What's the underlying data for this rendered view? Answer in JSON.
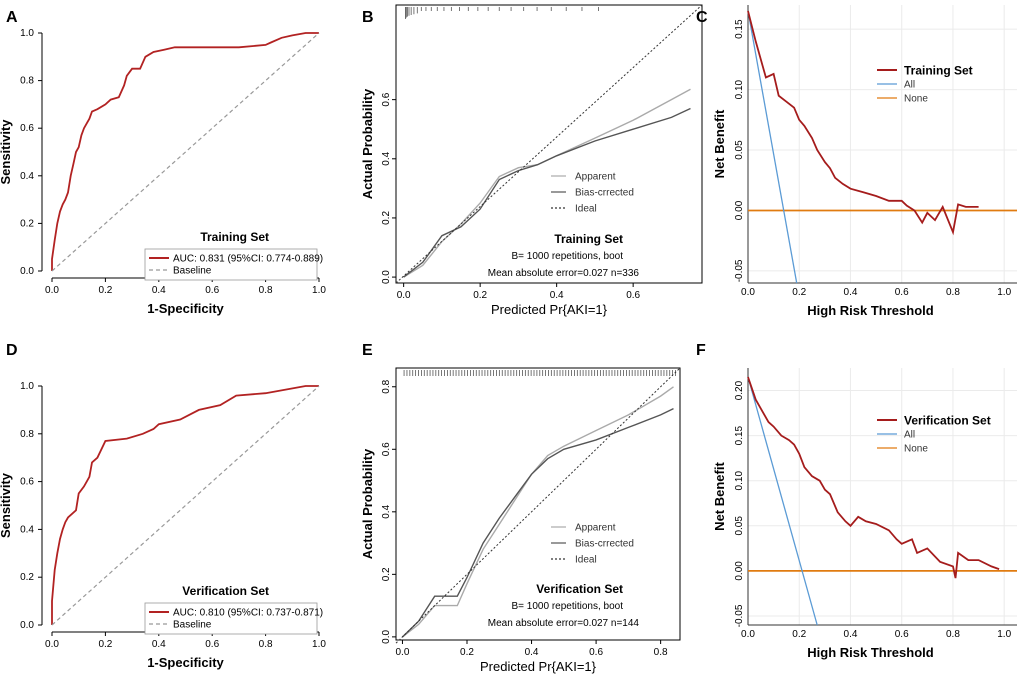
{
  "chart_data": [
    {
      "panel": "A",
      "type": "line",
      "subtype": "roc",
      "set_title": "Training Set",
      "xlabel": "1-Specificity",
      "ylabel": "Sensitivity",
      "xlim": [
        0,
        1
      ],
      "ylim": [
        0,
        1
      ],
      "xticks": [
        "0.0",
        "0.2",
        "0.4",
        "0.6",
        "0.8",
        "1.0"
      ],
      "yticks": [
        "0.0",
        "0.2",
        "0.4",
        "0.6",
        "0.8",
        "1.0"
      ],
      "legend": [
        "AUC: 0.831 (95%CI: 0.774-0.889)",
        "Baseline"
      ],
      "series": [
        {
          "name": "AUC: 0.831 (95%CI: 0.774-0.889)",
          "color": "#b22222",
          "points": [
            [
              0,
              0
            ],
            [
              0,
              0.05
            ],
            [
              0.01,
              0.13
            ],
            [
              0.02,
              0.2
            ],
            [
              0.03,
              0.25
            ],
            [
              0.04,
              0.28
            ],
            [
              0.05,
              0.3
            ],
            [
              0.06,
              0.33
            ],
            [
              0.07,
              0.4
            ],
            [
              0.08,
              0.45
            ],
            [
              0.09,
              0.5
            ],
            [
              0.1,
              0.52
            ],
            [
              0.11,
              0.57
            ],
            [
              0.12,
              0.6
            ],
            [
              0.13,
              0.62
            ],
            [
              0.14,
              0.64
            ],
            [
              0.15,
              0.67
            ],
            [
              0.17,
              0.68
            ],
            [
              0.2,
              0.7
            ],
            [
              0.22,
              0.72
            ],
            [
              0.25,
              0.73
            ],
            [
              0.27,
              0.78
            ],
            [
              0.28,
              0.82
            ],
            [
              0.3,
              0.85
            ],
            [
              0.33,
              0.85
            ],
            [
              0.35,
              0.9
            ],
            [
              0.38,
              0.92
            ],
            [
              0.42,
              0.93
            ],
            [
              0.46,
              0.94
            ],
            [
              0.6,
              0.94
            ],
            [
              0.7,
              0.94
            ],
            [
              0.8,
              0.95
            ],
            [
              0.82,
              0.96
            ],
            [
              0.86,
              0.98
            ],
            [
              0.9,
              0.99
            ],
            [
              0.95,
              1.0
            ],
            [
              1.0,
              1.0
            ]
          ]
        },
        {
          "name": "Baseline",
          "color": "#999999",
          "dashed": true,
          "points": [
            [
              0,
              0
            ],
            [
              1,
              1
            ]
          ]
        }
      ]
    },
    {
      "panel": "B",
      "type": "line",
      "subtype": "calibration",
      "set_title": "Training Set",
      "xlabel": "Predicted Pr{AKI=1}",
      "ylabel": "Actual Probability",
      "xlim": [
        -0.02,
        0.78
      ],
      "ylim": [
        -0.02,
        0.92
      ],
      "xticks": [
        "0.0",
        "0.2",
        "0.4",
        "0.6"
      ],
      "yticks": [
        "0.0",
        "0.2",
        "0.4",
        "0.6"
      ],
      "legend": [
        "Apparent",
        "Bias-crrected",
        "Ideal"
      ],
      "annotations": [
        "B= 1000 repetitions, boot",
        "Mean absolute error=0.027 n=336"
      ],
      "series": [
        {
          "name": "Apparent",
          "color": "#aaaaaa",
          "points": [
            [
              0,
              0
            ],
            [
              0.05,
              0.04
            ],
            [
              0.1,
              0.12
            ],
            [
              0.15,
              0.18
            ],
            [
              0.2,
              0.25
            ],
            [
              0.25,
              0.34
            ],
            [
              0.3,
              0.37
            ],
            [
              0.35,
              0.38
            ],
            [
              0.4,
              0.41
            ],
            [
              0.5,
              0.47
            ],
            [
              0.6,
              0.53
            ],
            [
              0.7,
              0.6
            ],
            [
              0.75,
              0.635
            ]
          ]
        },
        {
          "name": "Bias-crrected",
          "color": "#555555",
          "points": [
            [
              0,
              0
            ],
            [
              0.05,
              0.05
            ],
            [
              0.1,
              0.14
            ],
            [
              0.15,
              0.17
            ],
            [
              0.2,
              0.23
            ],
            [
              0.25,
              0.33
            ],
            [
              0.3,
              0.36
            ],
            [
              0.35,
              0.38
            ],
            [
              0.4,
              0.41
            ],
            [
              0.5,
              0.46
            ],
            [
              0.6,
              0.5
            ],
            [
              0.7,
              0.54
            ],
            [
              0.75,
              0.57
            ]
          ]
        },
        {
          "name": "Ideal",
          "color": "#333333",
          "dotted": true,
          "points": [
            [
              -0.02,
              -0.02
            ],
            [
              0.78,
              0.92
            ]
          ]
        }
      ]
    },
    {
      "panel": "C",
      "type": "line",
      "subtype": "decision-curve",
      "set_title": "Training Set",
      "xlabel": "High Risk Threshold",
      "ylabel": "Net Benefit",
      "xlim": [
        0,
        1.05
      ],
      "ylim": [
        -0.06,
        0.17
      ],
      "xticks": [
        "0.0",
        "0.2",
        "0.4",
        "0.6",
        "0.8",
        "1.0"
      ],
      "yticks": [
        "-0.05",
        "0.00",
        "0.05",
        "0.10",
        "0.15"
      ],
      "legend": [
        "Training Set",
        "All",
        "None"
      ],
      "series": [
        {
          "name": "Training Set",
          "color": "#a51c1c",
          "points": [
            [
              0,
              0.165
            ],
            [
              0.03,
              0.14
            ],
            [
              0.07,
              0.11
            ],
            [
              0.1,
              0.113
            ],
            [
              0.12,
              0.095
            ],
            [
              0.15,
              0.09
            ],
            [
              0.18,
              0.085
            ],
            [
              0.2,
              0.075
            ],
            [
              0.22,
              0.07
            ],
            [
              0.25,
              0.06
            ],
            [
              0.27,
              0.05
            ],
            [
              0.3,
              0.04
            ],
            [
              0.32,
              0.035
            ],
            [
              0.34,
              0.027
            ],
            [
              0.37,
              0.022
            ],
            [
              0.4,
              0.018
            ],
            [
              0.45,
              0.015
            ],
            [
              0.5,
              0.012
            ],
            [
              0.55,
              0.008
            ],
            [
              0.6,
              0.008
            ],
            [
              0.62,
              0.004
            ],
            [
              0.65,
              0.0
            ],
            [
              0.68,
              -0.01
            ],
            [
              0.7,
              -0.002
            ],
            [
              0.73,
              -0.008
            ],
            [
              0.76,
              0.003
            ],
            [
              0.8,
              -0.018
            ],
            [
              0.82,
              0.005
            ],
            [
              0.85,
              0.003
            ],
            [
              0.9,
              0.003
            ]
          ]
        },
        {
          "name": "All",
          "color": "#5b9bd5",
          "points": [
            [
              0,
              0.165
            ],
            [
              0.19,
              -0.06
            ]
          ]
        },
        {
          "name": "None",
          "color": "#e07b10",
          "points": [
            [
              0,
              0
            ],
            [
              1.05,
              0
            ]
          ]
        }
      ]
    },
    {
      "panel": "D",
      "type": "line",
      "subtype": "roc",
      "set_title": "Verification Set",
      "xlabel": "1-Specificity",
      "ylabel": "Sensitivity",
      "xlim": [
        0,
        1
      ],
      "ylim": [
        0,
        1
      ],
      "xticks": [
        "0.0",
        "0.2",
        "0.4",
        "0.6",
        "0.8",
        "1.0"
      ],
      "yticks": [
        "0.0",
        "0.2",
        "0.4",
        "0.6",
        "0.8",
        "1.0"
      ],
      "legend": [
        "AUC: 0.810 (95%CI: 0.737-0.871)",
        "Baseline"
      ],
      "series": [
        {
          "name": "AUC: 0.810 (95%CI: 0.737-0.871)",
          "color": "#b22222",
          "points": [
            [
              0,
              0
            ],
            [
              0,
              0.1
            ],
            [
              0.01,
              0.23
            ],
            [
              0.02,
              0.3
            ],
            [
              0.03,
              0.36
            ],
            [
              0.04,
              0.4
            ],
            [
              0.05,
              0.43
            ],
            [
              0.06,
              0.45
            ],
            [
              0.09,
              0.48
            ],
            [
              0.1,
              0.55
            ],
            [
              0.12,
              0.58
            ],
            [
              0.14,
              0.62
            ],
            [
              0.15,
              0.68
            ],
            [
              0.17,
              0.7
            ],
            [
              0.2,
              0.77
            ],
            [
              0.28,
              0.78
            ],
            [
              0.34,
              0.8
            ],
            [
              0.38,
              0.82
            ],
            [
              0.4,
              0.84
            ],
            [
              0.48,
              0.86
            ],
            [
              0.55,
              0.9
            ],
            [
              0.63,
              0.92
            ],
            [
              0.69,
              0.96
            ],
            [
              0.8,
              0.97
            ],
            [
              0.95,
              1.0
            ],
            [
              1.0,
              1.0
            ]
          ]
        },
        {
          "name": "Baseline",
          "color": "#999999",
          "dashed": true,
          "points": [
            [
              0,
              0
            ],
            [
              1,
              1
            ]
          ]
        }
      ]
    },
    {
      "panel": "E",
      "type": "line",
      "subtype": "calibration",
      "set_title": "Verification Set",
      "xlabel": "Predicted Pr{AKI=1}",
      "ylabel": "Actual Probability",
      "xlim": [
        -0.02,
        0.86
      ],
      "ylim": [
        -0.01,
        0.86
      ],
      "xticks": [
        "0.0",
        "0.2",
        "0.4",
        "0.6",
        "0.8"
      ],
      "yticks": [
        "0.0",
        "0.2",
        "0.4",
        "0.6",
        "0.8"
      ],
      "legend": [
        "Apparent",
        "Bias-crrected",
        "Ideal"
      ],
      "annotations": [
        "B= 1000 repetitions, boot",
        "Mean absolute error=0.027 n=144"
      ],
      "series": [
        {
          "name": "Apparent",
          "color": "#aaaaaa",
          "points": [
            [
              0,
              0
            ],
            [
              0.05,
              0.04
            ],
            [
              0.1,
              0.1
            ],
            [
              0.14,
              0.1
            ],
            [
              0.17,
              0.1
            ],
            [
              0.2,
              0.17
            ],
            [
              0.25,
              0.28
            ],
            [
              0.3,
              0.36
            ],
            [
              0.35,
              0.44
            ],
            [
              0.4,
              0.52
            ],
            [
              0.45,
              0.58
            ],
            [
              0.5,
              0.61
            ],
            [
              0.6,
              0.66
            ],
            [
              0.7,
              0.71
            ],
            [
              0.8,
              0.77
            ],
            [
              0.84,
              0.8
            ]
          ]
        },
        {
          "name": "Bias-crrected",
          "color": "#555555",
          "points": [
            [
              0,
              0
            ],
            [
              0.05,
              0.05
            ],
            [
              0.1,
              0.13
            ],
            [
              0.14,
              0.13
            ],
            [
              0.17,
              0.13
            ],
            [
              0.2,
              0.19
            ],
            [
              0.25,
              0.3
            ],
            [
              0.3,
              0.38
            ],
            [
              0.35,
              0.45
            ],
            [
              0.4,
              0.52
            ],
            [
              0.45,
              0.57
            ],
            [
              0.5,
              0.6
            ],
            [
              0.6,
              0.63
            ],
            [
              0.7,
              0.67
            ],
            [
              0.8,
              0.71
            ],
            [
              0.84,
              0.73
            ]
          ]
        },
        {
          "name": "Ideal",
          "color": "#333333",
          "dotted": true,
          "points": [
            [
              -0.02,
              -0.02
            ],
            [
              0.86,
              0.86
            ]
          ]
        }
      ]
    },
    {
      "panel": "F",
      "type": "line",
      "subtype": "decision-curve",
      "set_title": "Verification Set",
      "xlabel": "High Risk Threshold",
      "ylabel": "Net Benefit",
      "xlim": [
        0,
        1.05
      ],
      "ylim": [
        -0.06,
        0.225
      ],
      "xticks": [
        "0.0",
        "0.2",
        "0.4",
        "0.6",
        "0.8",
        "1.0"
      ],
      "yticks": [
        "-0.05",
        "0.00",
        "0.05",
        "0.10",
        "0.15",
        "0.20"
      ],
      "legend": [
        "Verification Set",
        "All",
        "None"
      ],
      "series": [
        {
          "name": "Verification Set",
          "color": "#a51c1c",
          "points": [
            [
              0,
              0.215
            ],
            [
              0.03,
              0.19
            ],
            [
              0.05,
              0.18
            ],
            [
              0.08,
              0.165
            ],
            [
              0.1,
              0.16
            ],
            [
              0.13,
              0.15
            ],
            [
              0.16,
              0.145
            ],
            [
              0.18,
              0.14
            ],
            [
              0.2,
              0.13
            ],
            [
              0.22,
              0.115
            ],
            [
              0.25,
              0.105
            ],
            [
              0.28,
              0.1
            ],
            [
              0.3,
              0.09
            ],
            [
              0.32,
              0.085
            ],
            [
              0.35,
              0.065
            ],
            [
              0.38,
              0.055
            ],
            [
              0.4,
              0.05
            ],
            [
              0.43,
              0.06
            ],
            [
              0.46,
              0.055
            ],
            [
              0.5,
              0.052
            ],
            [
              0.55,
              0.045
            ],
            [
              0.58,
              0.035
            ],
            [
              0.6,
              0.03
            ],
            [
              0.64,
              0.035
            ],
            [
              0.66,
              0.02
            ],
            [
              0.7,
              0.025
            ],
            [
              0.75,
              0.01
            ],
            [
              0.8,
              0.005
            ],
            [
              0.81,
              -0.008
            ],
            [
              0.82,
              0.02
            ],
            [
              0.86,
              0.012
            ],
            [
              0.9,
              0.012
            ],
            [
              0.95,
              0.005
            ],
            [
              0.98,
              0.002
            ]
          ]
        },
        {
          "name": "All",
          "color": "#5b9bd5",
          "points": [
            [
              0,
              0.215
            ],
            [
              0.27,
              -0.06
            ]
          ]
        },
        {
          "name": "None",
          "color": "#e07b10",
          "points": [
            [
              0,
              0
            ],
            [
              1.05,
              0
            ]
          ]
        }
      ]
    }
  ]
}
